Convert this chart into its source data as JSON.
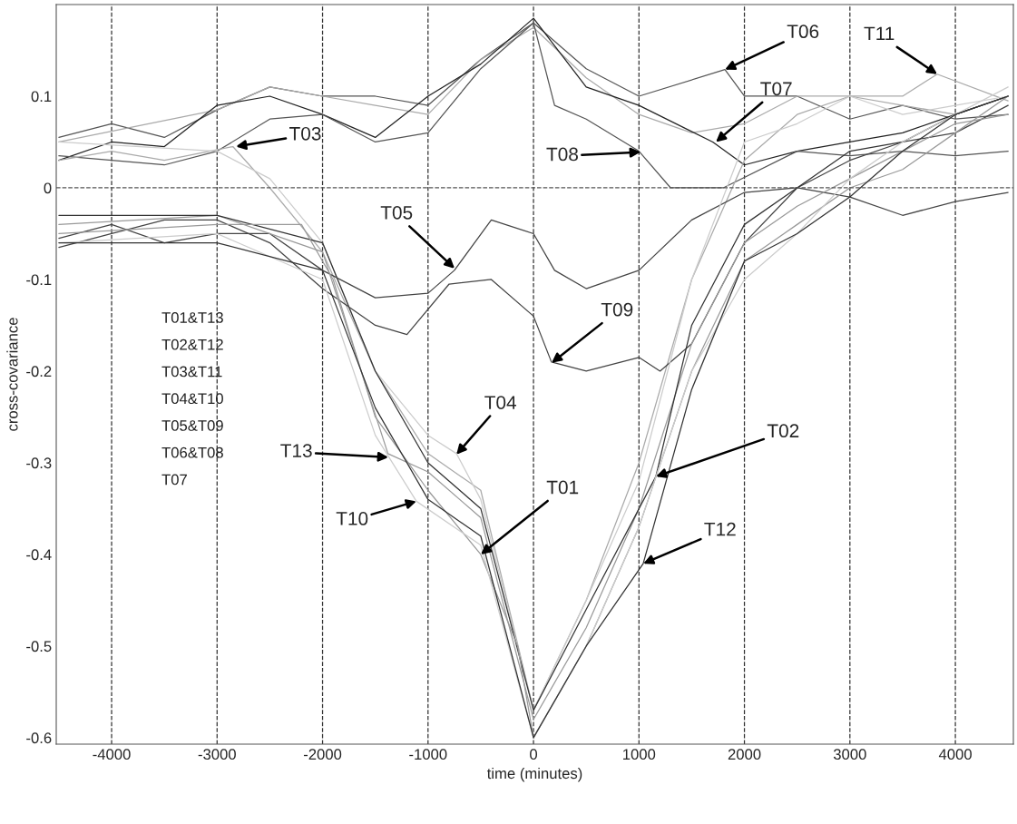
{
  "chart_data": {
    "type": "line",
    "xlabel": "time (minutes)",
    "ylabel": "cross-covariance",
    "xlim": [
      -4525,
      4550
    ],
    "ylim": [
      -0.607,
      0.2
    ],
    "xticks": [
      -4000,
      -3000,
      -2000,
      -1000,
      0,
      1000,
      2000,
      3000,
      4000
    ],
    "yticks": [
      0.1,
      0,
      -0.1,
      -0.2,
      -0.3,
      -0.4,
      -0.5,
      -0.6
    ],
    "grid": "x",
    "legend": false,
    "line_style": "solid",
    "marker": "none",
    "ref_lines": [
      {
        "axis": "y",
        "value": 0,
        "line_style": "dashed",
        "color": "#555555"
      }
    ],
    "series": [
      {
        "color": "#555555",
        "x": [
          -4500,
          -4000,
          -3500,
          -3000,
          -2500,
          -2000,
          -1500,
          -1000,
          -500,
          0,
          500,
          1000,
          1815,
          2000,
          2500,
          3000,
          3500,
          4000,
          4500
        ],
        "values": [
          0.055,
          0.07,
          0.055,
          0.085,
          0.11,
          0.1,
          0.1,
          0.09,
          0.14,
          0.18,
          0.13,
          0.1,
          0.129,
          0.1,
          0.1,
          0.075,
          0.09,
          0.075,
          0.08
        ]
      },
      {
        "color": "#aaaaaa",
        "x": [
          -4500,
          -3000,
          -2500,
          -2000,
          -1500,
          -1000,
          -500,
          0,
          500,
          1000,
          1500,
          2000,
          2500,
          3000,
          3500,
          3828,
          4500
        ],
        "values": [
          0.05,
          0.085,
          0.11,
          0.1,
          0.09,
          0.08,
          0.14,
          0.175,
          0.12,
          0.08,
          0.06,
          0.07,
          0.1,
          0.1,
          0.1,
          0.124,
          0.095
        ]
      },
      {
        "color": "#222222",
        "x": [
          -4500,
          -4000,
          -3500,
          -3000,
          -2500,
          -2000,
          -1500,
          -1000,
          -500,
          0,
          500,
          1000,
          1700,
          2000,
          2500,
          3000,
          3500,
          4000,
          4500
        ],
        "values": [
          0.03,
          0.05,
          0.045,
          0.09,
          0.1,
          0.08,
          0.055,
          0.1,
          0.135,
          0.185,
          0.11,
          0.09,
          0.05,
          0.025,
          0.04,
          0.05,
          0.06,
          0.08,
          0.1
        ]
      },
      {
        "color": "#555555",
        "x": [
          -4500,
          -4000,
          -3500,
          -3000,
          -2500,
          -2000,
          -1500,
          -1000,
          -500,
          0,
          200,
          500,
          1000,
          1300,
          1800,
          2500,
          3000,
          3500,
          4000,
          4500
        ],
        "values": [
          0.035,
          0.03,
          0.025,
          0.04,
          0.075,
          0.08,
          0.05,
          0.06,
          0.13,
          0.18,
          0.09,
          0.075,
          0.04,
          0.0,
          0.0,
          0.04,
          0.035,
          0.04,
          0.035,
          0.04
        ]
      },
      {
        "color": "#aaaaaa",
        "x": [
          -4500,
          -4000,
          -3500,
          -2850,
          -2500,
          -2000,
          -1500,
          -1000,
          -500,
          0,
          500,
          1000,
          1500,
          2000,
          2500,
          3000,
          3500,
          4000,
          4500
        ],
        "values": [
          0.03,
          0.04,
          0.03,
          0.045,
          0.0,
          -0.07,
          -0.2,
          -0.29,
          -0.33,
          -0.57,
          -0.45,
          -0.3,
          -0.1,
          0.03,
          0.08,
          0.1,
          0.09,
          0.08,
          0.1
        ]
      },
      {
        "color": "#444444",
        "x": [
          -4500,
          -4000,
          -3500,
          -3000,
          -2500,
          -2000,
          -1500,
          -1000,
          -750,
          -400,
          0,
          200,
          500,
          1000,
          1500,
          2000,
          2500,
          3000,
          3500,
          4000,
          4500
        ],
        "values": [
          -0.055,
          -0.04,
          -0.06,
          -0.05,
          -0.05,
          -0.09,
          -0.12,
          -0.115,
          -0.09,
          -0.035,
          -0.05,
          -0.09,
          -0.11,
          -0.09,
          -0.035,
          -0.005,
          0.0,
          -0.01,
          -0.03,
          -0.015,
          -0.005
        ]
      },
      {
        "color": "#444444",
        "x": [
          -4500,
          -4000,
          -3500,
          -3000,
          -2500,
          -2000,
          -1500,
          -1200,
          -800,
          -400,
          0,
          170,
          500,
          1000,
          1200,
          1500,
          2000,
          2500,
          3000,
          3500,
          4000,
          4500
        ],
        "values": [
          -0.065,
          -0.05,
          -0.035,
          -0.035,
          -0.06,
          -0.11,
          -0.15,
          -0.16,
          -0.105,
          -0.1,
          -0.14,
          -0.19,
          -0.2,
          -0.185,
          -0.2,
          -0.17,
          -0.06,
          0.0,
          0.03,
          0.05,
          0.06,
          0.09
        ]
      },
      {
        "color": "#cccccc",
        "x": [
          -4500,
          -3000,
          -2500,
          -2000,
          -1500,
          -1000,
          -730,
          -500,
          0,
          500,
          1000,
          1500,
          2000,
          2500,
          3000,
          3500,
          4000,
          4500
        ],
        "values": [
          0.05,
          0.04,
          0.01,
          -0.06,
          -0.2,
          -0.27,
          -0.29,
          -0.34,
          -0.57,
          -0.45,
          -0.32,
          -0.1,
          0.05,
          0.07,
          0.1,
          0.08,
          0.09,
          0.1
        ]
      },
      {
        "color": "#999999",
        "x": [
          -4500,
          -3000,
          -2000,
          -1380,
          -1000,
          -500,
          0,
          500,
          1000,
          1500,
          2000,
          2500,
          3000,
          3500,
          4000,
          4500
        ],
        "values": [
          -0.04,
          -0.03,
          -0.07,
          -0.29,
          -0.31,
          -0.36,
          -0.58,
          -0.48,
          -0.35,
          -0.17,
          -0.06,
          -0.02,
          0.01,
          0.04,
          0.07,
          0.08
        ]
      },
      {
        "color": "#333333",
        "x": [
          -4500,
          -3000,
          -2000,
          -1500,
          -1000,
          -500,
          0,
          500,
          1160,
          1500,
          2000,
          2500,
          3000,
          3500,
          4000,
          4500
        ],
        "values": [
          -0.03,
          -0.03,
          -0.06,
          -0.2,
          -0.3,
          -0.35,
          -0.57,
          -0.46,
          -0.315,
          -0.15,
          -0.04,
          0.0,
          0.04,
          0.05,
          0.08,
          0.1
        ]
      },
      {
        "color": "#999999",
        "x": [
          -4500,
          -3000,
          -2200,
          -1900,
          -1500,
          -1000,
          -500,
          -150,
          0,
          500,
          1000,
          1500,
          2000,
          2500,
          3000,
          3500,
          4000,
          4500
        ],
        "values": [
          -0.05,
          -0.04,
          -0.04,
          -0.1,
          -0.25,
          -0.33,
          -0.4,
          -0.5,
          -0.6,
          -0.5,
          -0.37,
          -0.2,
          -0.08,
          -0.04,
          0.0,
          0.02,
          0.06,
          0.1
        ]
      },
      {
        "color": "#cccccc",
        "x": [
          -4500,
          -3000,
          -2000,
          -1500,
          -1110,
          -500,
          0,
          500,
          1000,
          1500,
          2000,
          2500,
          3000,
          3500,
          4000,
          4500
        ],
        "values": [
          -0.06,
          -0.05,
          -0.1,
          -0.27,
          -0.342,
          -0.39,
          -0.6,
          -0.5,
          -0.37,
          -0.2,
          -0.1,
          -0.05,
          0.01,
          0.05,
          0.08,
          0.11
        ]
      },
      {
        "color": "#333333",
        "x": [
          -4500,
          -3000,
          -2000,
          -1500,
          -1000,
          -500,
          0,
          500,
          1040,
          1500,
          2000,
          2500,
          3000,
          3500,
          4000,
          4500
        ],
        "values": [
          -0.06,
          -0.06,
          -0.09,
          -0.24,
          -0.34,
          -0.38,
          -0.6,
          -0.5,
          -0.41,
          -0.22,
          -0.08,
          -0.05,
          -0.01,
          0.04,
          0.08,
          0.1
        ]
      }
    ],
    "annotations": [
      {
        "text": "T06",
        "x": 1815,
        "y": 0.129
      },
      {
        "text": "T11",
        "x": 3828,
        "y": 0.124
      },
      {
        "text": "T07",
        "x": 1729,
        "y": 0.05
      },
      {
        "text": "T08",
        "x": 1015,
        "y": 0.039
      },
      {
        "text": "T03",
        "x": -2821,
        "y": 0.045
      },
      {
        "text": "T05",
        "x": -748,
        "y": -0.088
      },
      {
        "text": "T09",
        "x": 172,
        "y": -0.191
      },
      {
        "text": "T04",
        "x": -731,
        "y": -0.291
      },
      {
        "text": "T13",
        "x": -1376,
        "y": -0.294
      },
      {
        "text": "T02",
        "x": 1161,
        "y": -0.315
      },
      {
        "text": "T01",
        "x": -500,
        "y": -0.4
      },
      {
        "text": "T10",
        "x": -1110,
        "y": -0.342
      },
      {
        "text": "T12",
        "x": 1041,
        "y": -0.41
      },
      "T01&T13",
      "T02&T12",
      "T03&T11",
      "T04&T10",
      "T05&T09",
      "T06&T08",
      "T07"
    ]
  }
}
